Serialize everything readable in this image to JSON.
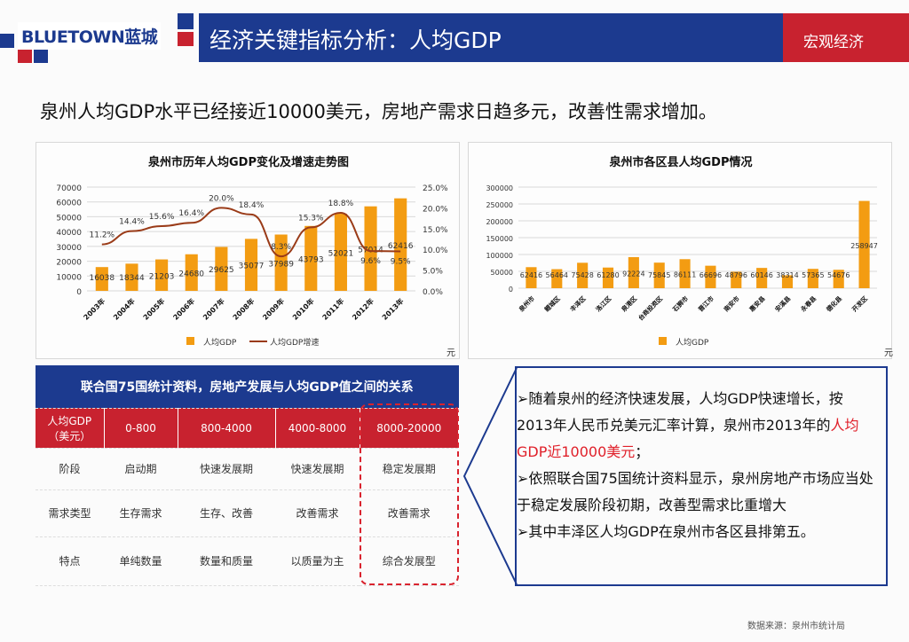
{
  "header": {
    "logo": "BLUETOWN蓝城",
    "title": "经济关键指标分析：人均GDP",
    "section": "宏观经济"
  },
  "headline": "泉州人均GDP水平已经接近10000美元，房地产需求日趋多元，改善性需求增加。",
  "colors": {
    "brand_blue": "#1c3a8f",
    "brand_red": "#c8222f",
    "bar": "#f39c12",
    "line": "#9a3b18"
  },
  "chart_data": [
    {
      "type": "bar+line",
      "title": "泉州市历年人均GDP变化及增速走势图",
      "categories": [
        "2003年",
        "2004年",
        "2005年",
        "2006年",
        "2007年",
        "2008年",
        "2009年",
        "2010年",
        "2011年",
        "2012年",
        "2013年"
      ],
      "series": [
        {
          "name": "人均GDP",
          "type": "bar",
          "axis": "left",
          "values": [
            16038,
            18344,
            21203,
            24680,
            29625,
            35077,
            37989,
            43793,
            52021,
            57014,
            62416
          ]
        },
        {
          "name": "人均GDP增速",
          "type": "line",
          "axis": "right",
          "values": [
            11.2,
            14.4,
            15.6,
            16.4,
            20.0,
            18.4,
            8.3,
            15.3,
            18.8,
            9.6,
            9.5
          ]
        }
      ],
      "ylim": [
        0,
        70000
      ],
      "yticks": [
        "70000",
        "60000",
        "50000",
        "40000",
        "30000",
        "20000",
        "10000",
        "0"
      ],
      "y2lim": [
        0,
        25
      ],
      "y2ticks": [
        "25.0%",
        "20.0%",
        "15.0%",
        "10.0%",
        "5.0%",
        "0.0%"
      ],
      "unit": "元",
      "legend": "bottom",
      "grid": true
    },
    {
      "type": "bar",
      "title": "泉州市各区县人均GDP情况",
      "categories": [
        "泉州市",
        "鲤城区",
        "丰泽区",
        "洛江区",
        "泉港区",
        "台商投资区",
        "石狮市",
        "晋江市",
        "南安市",
        "惠安县",
        "安溪县",
        "永春县",
        "德化县",
        "开发区"
      ],
      "series": [
        {
          "name": "人均GDP",
          "values": [
            62416,
            56464,
            75428,
            61280,
            92224,
            75845,
            86111,
            66696,
            48796,
            60146,
            38314,
            57365,
            54676,
            258947
          ]
        }
      ],
      "ylim": [
        0,
        300000
      ],
      "yticks": [
        "300000",
        "250000",
        "200000",
        "150000",
        "100000",
        "50000",
        "0"
      ],
      "unit": "元",
      "legend": "bottom",
      "grid": true
    }
  ],
  "table": {
    "title": "联合国75国统计资料，房地产发展与人均GDP值之间的关系",
    "header": [
      "人均GDP\n（美元）",
      "0-800",
      "800-4000",
      "4000-8000",
      "8000-20000"
    ],
    "rows": [
      [
        "阶段",
        "启动期",
        "快速发展期",
        "快速发展期",
        "稳定发展期"
      ],
      [
        "需求类型",
        "生存需求",
        "生存、改善",
        "改善需求",
        "改善需求"
      ],
      [
        "特点",
        "单纯数量",
        "数量和质量",
        "以质量为主",
        "综合发展型"
      ]
    ]
  },
  "note": {
    "p1a": "➢随着泉州的经济快速发展，人均GDP快速增长，按2013年人民币兑美元汇率计算，泉州市2013年的",
    "p1b": "人均GDP近10000美元",
    "p1c": "；",
    "p2": "➢依照联合国75国统计资料显示，泉州房地产市场应当处于稳定发展阶段初期，改善型需求比重增大",
    "p3": "➢其中丰泽区人均GDP在泉州市各区县排第五。"
  },
  "source": "数据来源：泉州市统计局"
}
